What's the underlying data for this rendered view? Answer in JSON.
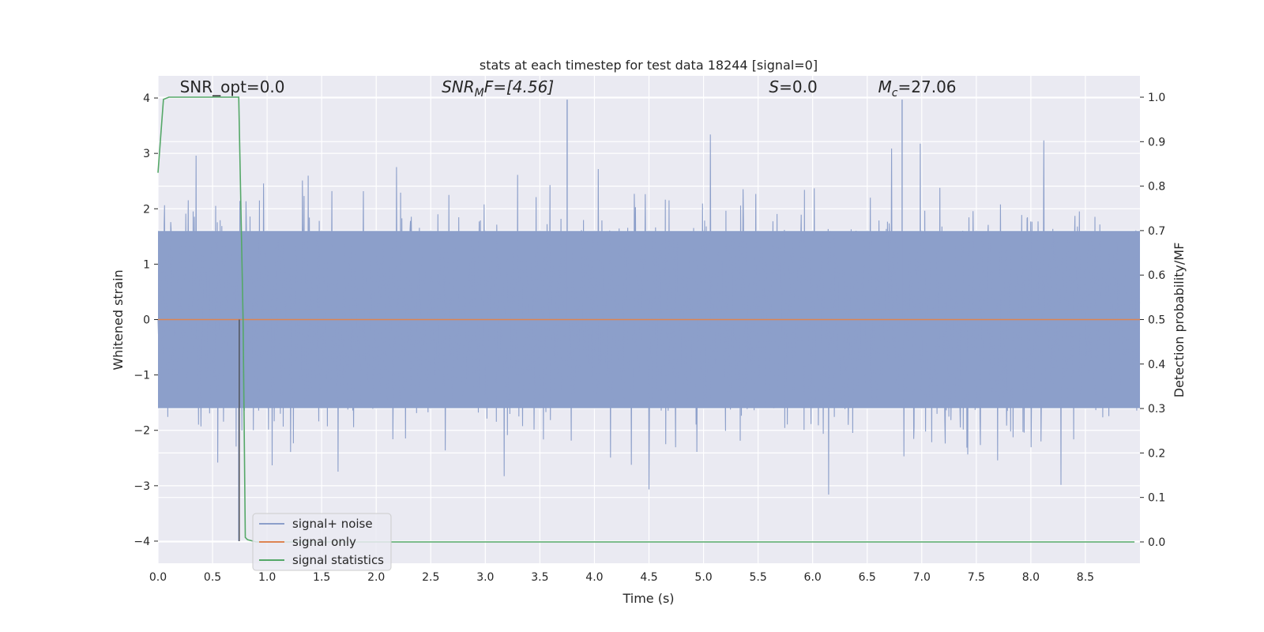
{
  "chart_data": {
    "type": "line",
    "title": "stats at each timestep for test data 18244 [signal=0]",
    "xlabel": "Time (s)",
    "ylabel": "Whitened strain",
    "y2label": "Detection probability/MF",
    "xlim": [
      0.0,
      9.0
    ],
    "ylim": [
      -4.4,
      4.4
    ],
    "y2lim": [
      -0.048,
      1.048
    ],
    "xticks": [
      0.0,
      0.5,
      1.0,
      1.5,
      2.0,
      2.5,
      3.0,
      3.5,
      4.0,
      4.5,
      5.0,
      5.5,
      6.0,
      6.5,
      7.0,
      7.5,
      8.0,
      8.5
    ],
    "yticks": [
      -4,
      -3,
      -2,
      -1,
      0,
      1,
      2,
      3,
      4
    ],
    "y2ticks": [
      0.0,
      0.1,
      0.2,
      0.3,
      0.4,
      0.5,
      0.6,
      0.7,
      0.8,
      0.9,
      1.0
    ],
    "grid": true,
    "legend_position": "bottom-left",
    "annotations": [
      {
        "text": "SNR_opt=0.0",
        "x": 0.2,
        "y": 4.1
      },
      {
        "text": "SNR",
        "sub": "M",
        "rest": "F=[4.56]",
        "x": 2.6,
        "y": 4.1
      },
      {
        "text": "S",
        "rest": "=0.0",
        "x": 5.6,
        "y": 4.1
      },
      {
        "text": "M",
        "sub": "c",
        "rest": "=27.06",
        "x": 6.6,
        "y": 4.1
      }
    ],
    "series": [
      {
        "name": "signal+ noise",
        "color": "#8c9fca",
        "axis": "left",
        "description_values": "whitened strain noise, approx amplitude within [-4, 4]",
        "envelope": {
          "upper_typical": 1.6,
          "lower_typical": -1.6,
          "peak_max": 3.97,
          "peak_min": -4.0
        }
      },
      {
        "name": "signal only",
        "color": "#dd8452",
        "axis": "left",
        "x": [
          0.0,
          9.0
        ],
        "y": [
          0.0,
          0.0
        ]
      },
      {
        "name": "signal statistics",
        "color": "#55a868",
        "axis": "right",
        "x": [
          0.0,
          0.05,
          0.1,
          0.2,
          0.4,
          0.6,
          0.7,
          0.74,
          0.78,
          0.8,
          0.82,
          0.9,
          1.5,
          3.0,
          5.0,
          7.0,
          8.5,
          8.95
        ],
        "y": [
          0.83,
          0.995,
          1.0,
          1.0,
          1.0,
          1.0,
          1.0,
          1.0,
          0.5,
          0.01,
          0.005,
          0.0,
          0.0,
          0.0,
          0.0,
          0.0,
          0.0,
          0.0
        ]
      }
    ]
  }
}
